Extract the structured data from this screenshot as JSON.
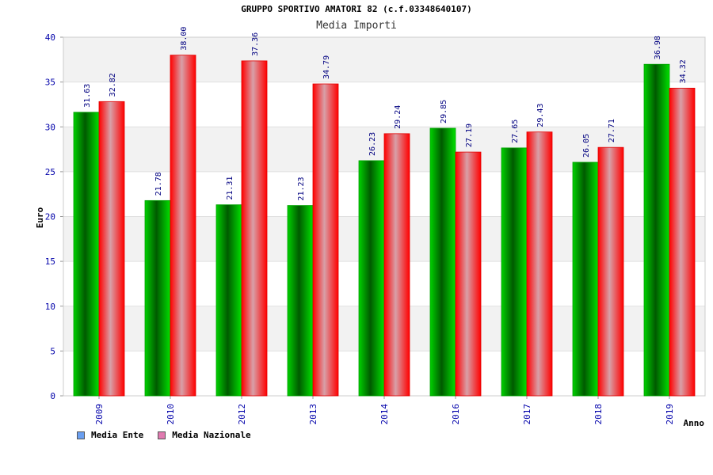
{
  "chart_data": {
    "type": "bar",
    "title": "GRUPPO SPORTIVO AMATORI 82 (c.f.03348640107)",
    "subtitle": "Media Importi",
    "xlabel": "Anno",
    "ylabel": "Euro",
    "ylim": [
      0,
      40
    ],
    "yticks": [
      0,
      5,
      10,
      15,
      20,
      25,
      30,
      35,
      40
    ],
    "categories": [
      "2009",
      "2010",
      "2012",
      "2013",
      "2014",
      "2016",
      "2017",
      "2018",
      "2019"
    ],
    "series": [
      {
        "name": "Media Ente",
        "values": [
          31.63,
          21.78,
          21.31,
          21.23,
          26.23,
          29.85,
          27.65,
          26.05,
          36.98
        ],
        "color": "#00b000"
      },
      {
        "name": "Media Nazionale",
        "values": [
          32.82,
          38.0,
          37.36,
          34.79,
          29.24,
          27.19,
          29.43,
          27.71,
          34.32
        ],
        "color": "#ff1a1a"
      }
    ],
    "value_labels": [
      [
        "31.63",
        "21.78",
        "21.31",
        "21.23",
        "26.23",
        "29.85",
        "27.65",
        "26.05",
        "36.98"
      ],
      [
        "32.82",
        "38.00",
        "37.36",
        "34.79",
        "29.24",
        "27.19",
        "29.43",
        "27.71",
        "34.32"
      ]
    ],
    "legend": {
      "position": "bottom-left",
      "items": [
        {
          "label": "Media Ente",
          "color": "#6a9ff0"
        },
        {
          "label": "Media Nazionale",
          "color": "#e07ab0"
        }
      ]
    },
    "grid": true
  }
}
